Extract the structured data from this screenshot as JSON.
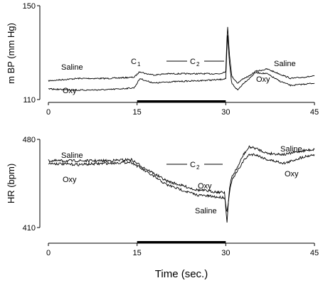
{
  "chart_data": [
    {
      "type": "line",
      "ylabel": "m BP (mm Hg)",
      "ylim": [
        110,
        150
      ],
      "yticks": [
        "150",
        "110"
      ],
      "xlim": [
        0,
        45
      ],
      "xticks": [
        "0",
        "15",
        "30",
        "45"
      ],
      "bar": [
        15,
        30
      ],
      "annotations": {
        "c1": {
          "main": "C",
          "sub": "1"
        },
        "c2": {
          "main": "C",
          "sub": "2"
        },
        "saline_left": "Saline",
        "oxy_left": "Oxy",
        "saline_right": "Saline",
        "oxy_right": "Oxy"
      },
      "series": [
        {
          "name": "Saline",
          "x": [
            0,
            5,
            10,
            14.5,
            15.5,
            16.5,
            18,
            20,
            25,
            29,
            30,
            30.3,
            30.6,
            31,
            32,
            33,
            34,
            35,
            37,
            39,
            41,
            43,
            45
          ],
          "y": [
            118,
            119,
            119,
            119.5,
            122,
            121,
            120.5,
            121,
            121,
            121,
            122,
            142,
            130,
            120,
            117,
            119,
            120,
            122,
            123,
            121,
            119,
            119.5,
            120
          ]
        },
        {
          "name": "Oxy",
          "x": [
            0,
            5,
            10,
            14.5,
            15.5,
            16.5,
            18,
            20,
            25,
            29,
            30,
            30.3,
            30.6,
            31,
            32,
            33,
            34,
            35,
            37,
            39,
            41,
            43,
            45
          ],
          "y": [
            114.5,
            114,
            114.2,
            115,
            119,
            118,
            117,
            117.5,
            118,
            118.5,
            119,
            138,
            126,
            117,
            114,
            117,
            119,
            121.5,
            121,
            118,
            116,
            116.5,
            117
          ]
        }
      ]
    },
    {
      "type": "line",
      "ylabel": "HR (bpm)",
      "xlabel": "Time (sec.)",
      "ylim": [
        410,
        480
      ],
      "yticks": [
        "480",
        "410"
      ],
      "xlim": [
        0,
        45
      ],
      "xticks": [
        "0",
        "15",
        "30",
        "45"
      ],
      "bar": [
        15,
        30
      ],
      "annotations": {
        "c2": {
          "main": "C",
          "sub": "2"
        },
        "saline_left": "Saline",
        "oxy_left": "Oxy",
        "oxy_mid": "Oxy",
        "saline_mid": "Saline",
        "saline_right": "Saline",
        "oxy_right": "Oxy"
      },
      "series": [
        {
          "name": "Saline",
          "x": [
            0,
            5,
            10,
            14,
            16,
            20,
            25,
            29,
            29.8,
            30.2,
            30.6,
            31,
            32,
            33,
            34,
            35,
            37,
            40,
            43,
            45
          ],
          "y": [
            463,
            463,
            463,
            464,
            458,
            447,
            440,
            438,
            438,
            414,
            440,
            450,
            458,
            468,
            474,
            473,
            469,
            468,
            471,
            472
          ]
        },
        {
          "name": "Oxy",
          "x": [
            0,
            5,
            10,
            14,
            16,
            20,
            25,
            29,
            29.8,
            30.2,
            30.6,
            31,
            32,
            33,
            34,
            35,
            37,
            40,
            43,
            45
          ],
          "y": [
            461,
            460,
            461,
            462,
            456,
            444,
            436,
            434,
            434,
            422,
            437,
            447,
            455,
            463,
            468,
            468,
            464,
            461,
            466,
            468
          ]
        }
      ]
    }
  ]
}
